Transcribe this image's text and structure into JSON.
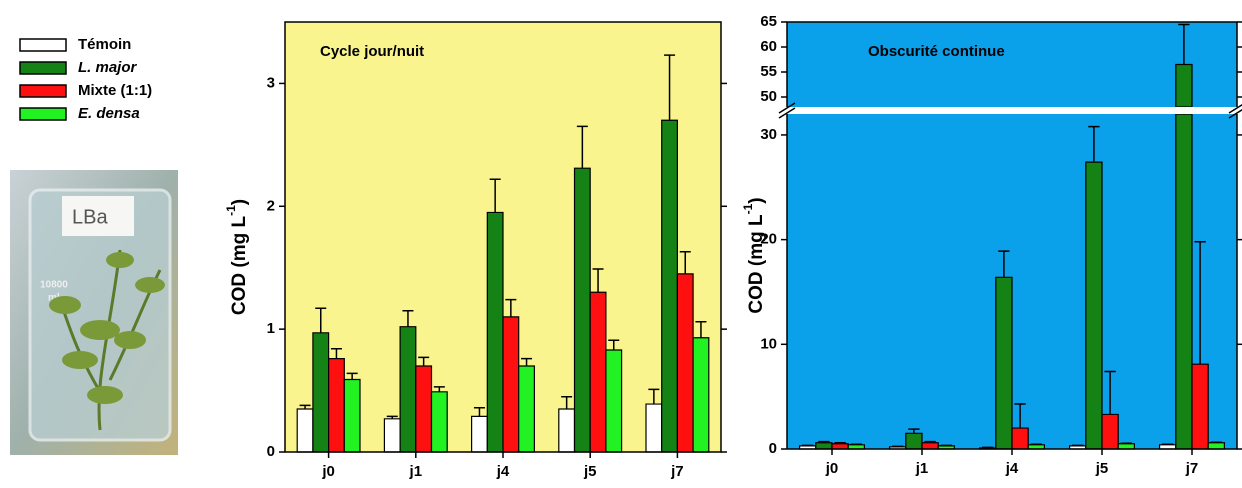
{
  "photo": {
    "label": "LBa",
    "volume": "10800",
    "unit": "ml"
  },
  "chart_data": [
    {
      "type": "bar",
      "title": "Cycle jour/nuit",
      "background": "#f9f48e",
      "y_label": {
        "text": "COD (mg L",
        "sup": "-1",
        "end": ")"
      },
      "categories": [
        "j0",
        "j1",
        "j4",
        "j5",
        "j7"
      ],
      "ylim": [
        0,
        3.5
      ],
      "yticks": [
        0,
        1,
        2,
        3
      ],
      "series": [
        {
          "name": "Témoin",
          "color": "#ffffff",
          "italic": false,
          "values": [
            0.35,
            0.27,
            0.29,
            0.35,
            0.39
          ],
          "errors": [
            0.03,
            0.02,
            0.07,
            0.1,
            0.12
          ]
        },
        {
          "name": "L. major",
          "color": "#148214",
          "italic": true,
          "values": [
            0.97,
            1.02,
            1.95,
            2.31,
            2.7
          ],
          "errors": [
            0.2,
            0.13,
            0.27,
            0.34,
            0.53
          ]
        },
        {
          "name": "Mixte (1:1)",
          "color": "#ff1010",
          "italic": false,
          "values": [
            0.76,
            0.7,
            1.1,
            1.3,
            1.45
          ],
          "errors": [
            0.08,
            0.07,
            0.14,
            0.19,
            0.18
          ]
        },
        {
          "name": "E. densa",
          "color": "#22f222",
          "italic": true,
          "values": [
            0.59,
            0.49,
            0.7,
            0.83,
            0.93
          ],
          "errors": [
            0.05,
            0.04,
            0.06,
            0.08,
            0.13
          ]
        }
      ]
    },
    {
      "type": "bar",
      "title": "Obscurité continue",
      "background": "#0aa0ea",
      "y_label": {
        "text": "COD (mg L",
        "sup": "-1",
        "end": ")"
      },
      "categories": [
        "j0",
        "j1",
        "j4",
        "j5",
        "j7"
      ],
      "ylim": [
        0,
        65
      ],
      "axis_break": [
        32,
        48
      ],
      "yticks": [
        0,
        10,
        20,
        30,
        50,
        55,
        60,
        65
      ],
      "series": [
        {
          "name": "Témoin",
          "color": "#ffffff",
          "italic": false,
          "values": [
            0.3,
            0.2,
            0.1,
            0.3,
            0.4
          ],
          "errors": [
            0.05,
            0.05,
            0.05,
            0.05,
            0.05
          ]
        },
        {
          "name": "L. major",
          "color": "#148214",
          "italic": true,
          "values": [
            0.6,
            1.5,
            16.4,
            27.4,
            56.5
          ],
          "errors": [
            0.1,
            0.4,
            2.5,
            3.4,
            8
          ]
        },
        {
          "name": "Mixte (1:1)",
          "color": "#ff1010",
          "italic": false,
          "values": [
            0.5,
            0.6,
            2.0,
            3.3,
            8.1
          ],
          "errors": [
            0.1,
            0.1,
            2.3,
            4.1,
            11.7
          ]
        },
        {
          "name": "E. densa",
          "color": "#22f222",
          "italic": true,
          "values": [
            0.4,
            0.3,
            0.4,
            0.5,
            0.6
          ],
          "errors": [
            0.05,
            0.05,
            0.05,
            0.05,
            0.05
          ]
        }
      ]
    }
  ]
}
